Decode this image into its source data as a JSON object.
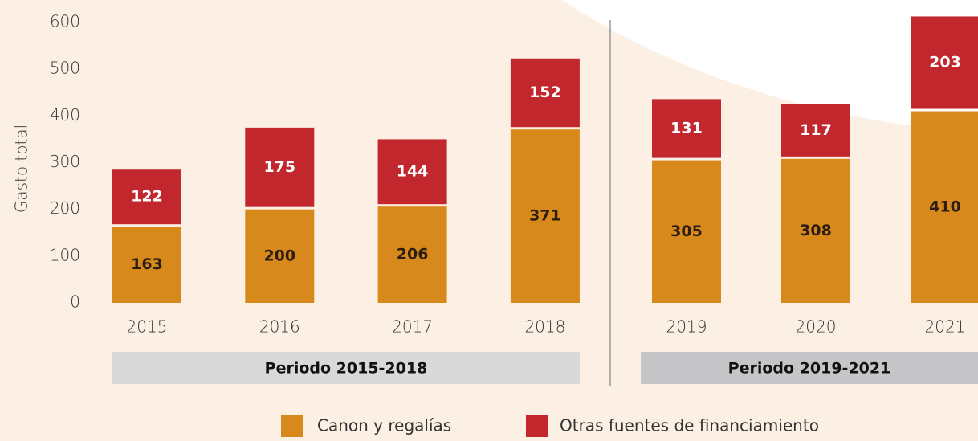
{
  "chart_data": {
    "type": "stacked_bar",
    "ylabel": "Gasto total",
    "categories": [
      "2015",
      "2016",
      "2017",
      "2018",
      "2019",
      "2020",
      "2021"
    ],
    "series": [
      {
        "name": "Canon y regalías",
        "color": "#d8891c",
        "values": [
          163,
          200,
          206,
          371,
          305,
          308,
          410
        ]
      },
      {
        "name": "Otras fuentes de financiamiento",
        "color": "#c1272d",
        "values": [
          122,
          175,
          144,
          152,
          131,
          117,
          203
        ]
      }
    ],
    "periods": [
      "Periodo 2015-2018",
      "Periodo 2019-2021"
    ],
    "ylim": [
      0,
      600
    ],
    "yticks": [
      0,
      100,
      200,
      300,
      400,
      500,
      600
    ],
    "grid": false
  }
}
